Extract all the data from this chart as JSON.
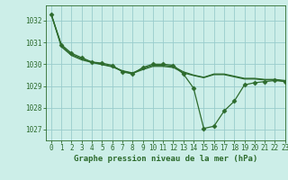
{
  "title": "Graphe pression niveau de la mer (hPa)",
  "bg_color": "#cceee8",
  "grid_color": "#99cccc",
  "line_color": "#2d6b2d",
  "xlim": [
    -0.5,
    23
  ],
  "ylim": [
    1026.5,
    1032.7
  ],
  "yticks": [
    1027,
    1028,
    1029,
    1030,
    1031,
    1032
  ],
  "xticks": [
    0,
    1,
    2,
    3,
    4,
    5,
    6,
    7,
    8,
    9,
    10,
    11,
    12,
    13,
    14,
    15,
    16,
    17,
    18,
    19,
    20,
    21,
    22,
    23
  ],
  "series": [
    {
      "x": [
        0,
        1,
        2,
        3,
        4,
        5,
        6,
        7,
        8,
        9,
        10,
        11,
        12,
        13,
        14,
        15,
        16,
        17,
        18,
        19,
        20,
        21,
        22,
        23
      ],
      "y": [
        1032.3,
        1030.9,
        1030.5,
        1030.3,
        1030.1,
        1030.05,
        1029.95,
        1029.65,
        1029.55,
        1029.85,
        1030.0,
        1030.0,
        1029.95,
        1029.55,
        1028.9,
        1027.05,
        1027.15,
        1027.85,
        1028.3,
        1029.05,
        1029.15,
        1029.2,
        1029.25,
        1029.2
      ],
      "marker": true
    },
    {
      "x": [
        0,
        1,
        2,
        3,
        4,
        5,
        6,
        7,
        8,
        9,
        10,
        11,
        12,
        13,
        14,
        15,
        16,
        17,
        18,
        19,
        20,
        21,
        22,
        23
      ],
      "y": [
        1032.3,
        1030.85,
        1030.45,
        1030.25,
        1030.1,
        1030.0,
        1029.9,
        1029.7,
        1029.6,
        1029.8,
        1029.95,
        1029.95,
        1029.9,
        1029.65,
        1029.5,
        1029.4,
        1029.55,
        1029.55,
        1029.45,
        1029.35,
        1029.35,
        1029.3,
        1029.3,
        1029.25
      ],
      "marker": false
    },
    {
      "x": [
        0,
        1,
        2,
        3,
        4,
        5,
        6,
        7,
        8,
        9,
        10,
        11,
        12,
        13,
        14,
        15,
        16,
        17,
        18,
        19,
        20,
        21,
        22,
        23
      ],
      "y": [
        1032.3,
        1030.8,
        1030.4,
        1030.2,
        1030.08,
        1029.98,
        1029.88,
        1029.68,
        1029.58,
        1029.75,
        1029.9,
        1029.9,
        1029.85,
        1029.6,
        1029.48,
        1029.38,
        1029.52,
        1029.52,
        1029.42,
        1029.32,
        1029.32,
        1029.28,
        1029.28,
        1029.22
      ],
      "marker": false
    }
  ],
  "marker_style": "D",
  "markersize": 2.5,
  "linewidth": 0.9,
  "title_fontsize": 6.5,
  "tick_fontsize": 5.5,
  "xlabel_fontsize": 6.5
}
